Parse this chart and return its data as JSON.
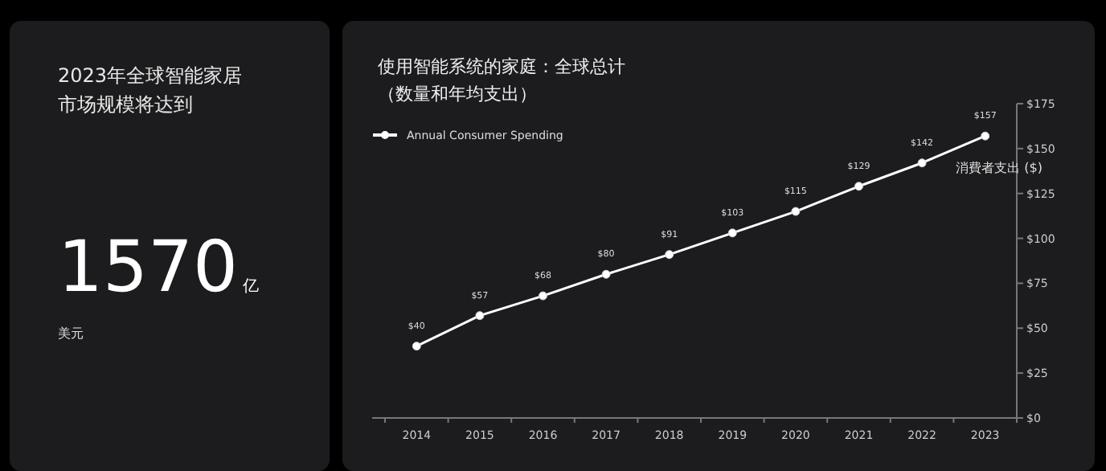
{
  "chart_data": [
    {
      "type": "other",
      "title": "2023年全球智能家居市场规模将达到",
      "annotations": [
        "1570",
        "亿",
        "美元"
      ]
    },
    {
      "type": "line",
      "title": "使用智能系统的家庭：全球总计",
      "subtitle": "（数量和年均支出）",
      "ylabel": "消費者支出 ($)",
      "categories": [
        "2014",
        "2015",
        "2016",
        "2017",
        "2018",
        "2019",
        "2020",
        "2021",
        "2022",
        "2023"
      ],
      "series": [
        {
          "name": "Annual Consumer Spending",
          "color": "#ffffff",
          "values": [
            40,
            57,
            68,
            80,
            91,
            103,
            115,
            129,
            142,
            157
          ],
          "value_labels": [
            "$40",
            "$57",
            "$68",
            "$80",
            "$91",
            "$103",
            "$115",
            "$129",
            "$142",
            "$157"
          ]
        }
      ],
      "ylim": [
        0,
        175
      ],
      "yticks": [
        {
          "value": 0,
          "label": "$0"
        },
        {
          "value": 25,
          "label": "$25"
        },
        {
          "value": 50,
          "label": "$50"
        },
        {
          "value": 75,
          "label": "$75"
        },
        {
          "value": 100,
          "label": "$100"
        },
        {
          "value": 125,
          "label": "$125"
        },
        {
          "value": 150,
          "label": "$150"
        },
        {
          "value": 175,
          "label": "$175"
        }
      ],
      "marker": "circle",
      "line_style": "solid",
      "legend": "top left",
      "grid": false
    }
  ]
}
